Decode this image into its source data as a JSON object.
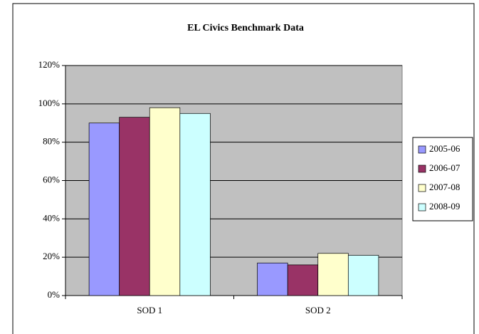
{
  "chart_data": {
    "type": "bar",
    "title": "EL Civics Benchmark Data",
    "categories": [
      "SOD 1",
      "SOD 2"
    ],
    "series": [
      {
        "name": "2005-06",
        "color": "#9999ff",
        "values": [
          90,
          17
        ]
      },
      {
        "name": "2006-07",
        "color": "#993366",
        "values": [
          93,
          16
        ]
      },
      {
        "name": "2007-08",
        "color": "#ffffcc",
        "values": [
          98,
          22
        ]
      },
      {
        "name": "2008-09",
        "color": "#ccffff",
        "values": [
          95,
          21
        ]
      }
    ],
    "ylim": [
      0,
      120
    ],
    "yticks": [
      {
        "value": 0,
        "label": "0%"
      },
      {
        "value": 20,
        "label": "20%"
      },
      {
        "value": 40,
        "label": "40%"
      },
      {
        "value": 60,
        "label": "60%"
      },
      {
        "value": 80,
        "label": "80%"
      },
      {
        "value": 100,
        "label": "100%"
      },
      {
        "value": 120,
        "label": "120%"
      }
    ],
    "grid": true,
    "legend": "right"
  }
}
